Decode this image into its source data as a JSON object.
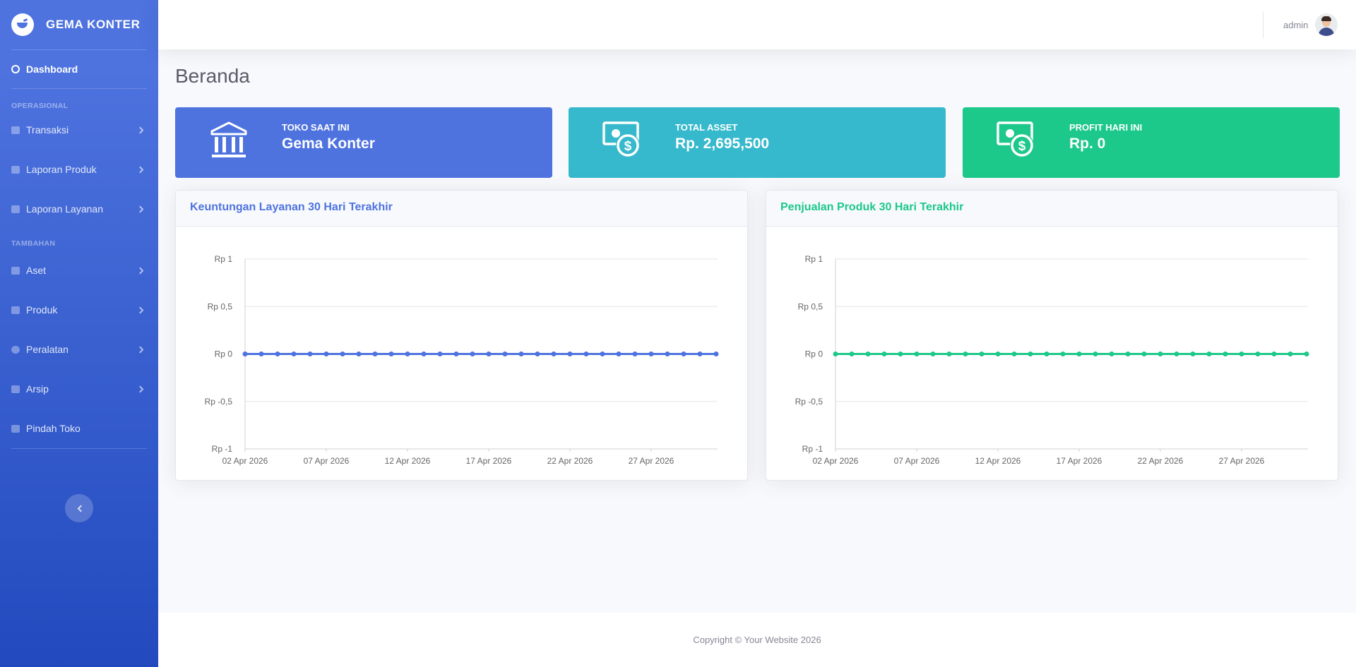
{
  "brand": {
    "name": "GEMA KONTER",
    "icon": "laugh-wink-icon"
  },
  "sidebar": {
    "dashboard": "Dashboard",
    "heading_operasional": "OPERASIONAL",
    "heading_tambahan": "TAMBAHAN",
    "items": [
      {
        "label": "Transaksi",
        "icon": "money-check-icon"
      },
      {
        "label": "Laporan Produk",
        "icon": "report-icon"
      },
      {
        "label": "Laporan Layanan",
        "icon": "report-icon"
      },
      {
        "label": "Aset",
        "icon": "money-bill-icon"
      },
      {
        "label": "Produk",
        "icon": "box-icon"
      },
      {
        "label": "Peralatan",
        "icon": "cog-icon"
      },
      {
        "label": "Arsip",
        "icon": "folder-icon"
      },
      {
        "label": "Pindah Toko",
        "icon": "store-icon"
      }
    ]
  },
  "topbar": {
    "user_name": "admin"
  },
  "page": {
    "title": "Beranda"
  },
  "cards": [
    {
      "label": "TOKO SAAT INI",
      "value": "Gema Konter",
      "icon": "bank-icon",
      "color": "#4e73df"
    },
    {
      "label": "TOTAL ASSET",
      "value": "Rp. 2,695,500",
      "icon": "money-bill-dollar-icon",
      "color": "#36b9cc"
    },
    {
      "label": "PROFIT HARI INI",
      "value": "Rp. 0",
      "icon": "money-bill-dollar-icon",
      "color": "#1cc88a"
    }
  ],
  "chart_data": [
    {
      "type": "line",
      "title": "Keuntungan Layanan 30 Hari Terakhir",
      "color": "#4e73df",
      "ylim": [
        -1,
        1
      ],
      "yticks": [
        "Rp 1",
        "Rp 0,5",
        "Rp 0",
        "Rp -0,5",
        "Rp -1"
      ],
      "xticks": [
        "02 Apr 2026",
        "07 Apr 2026",
        "12 Apr 2026",
        "17 Apr 2026",
        "22 Apr 2026",
        "27 Apr 2026"
      ],
      "x_start": "02 Apr 2026",
      "values": [
        0,
        0,
        0,
        0,
        0,
        0,
        0,
        0,
        0,
        0,
        0,
        0,
        0,
        0,
        0,
        0,
        0,
        0,
        0,
        0,
        0,
        0,
        0,
        0,
        0,
        0,
        0,
        0,
        0,
        0
      ]
    },
    {
      "type": "line",
      "title": "Penjualan Produk 30 Hari Terakhir",
      "color": "#1cc88a",
      "ylim": [
        -1,
        1
      ],
      "yticks": [
        "Rp 1",
        "Rp 0,5",
        "Rp 0",
        "Rp -0,5",
        "Rp -1"
      ],
      "xticks": [
        "02 Apr 2026",
        "07 Apr 2026",
        "12 Apr 2026",
        "17 Apr 2026",
        "22 Apr 2026",
        "27 Apr 2026"
      ],
      "x_start": "02 Apr 2026",
      "values": [
        0,
        0,
        0,
        0,
        0,
        0,
        0,
        0,
        0,
        0,
        0,
        0,
        0,
        0,
        0,
        0,
        0,
        0,
        0,
        0,
        0,
        0,
        0,
        0,
        0,
        0,
        0,
        0,
        0,
        0
      ]
    }
  ],
  "footer": {
    "text": "Copyright © Your Website 2026"
  }
}
